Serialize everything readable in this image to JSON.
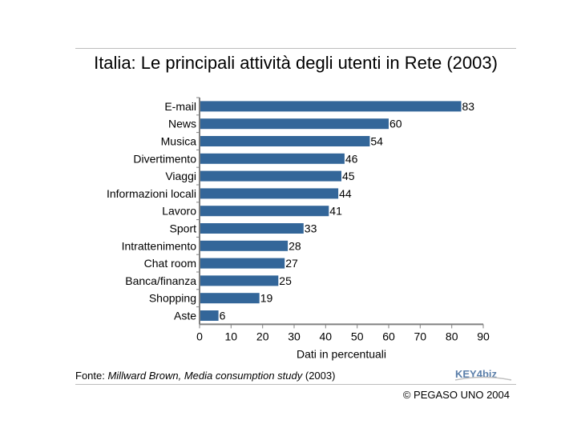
{
  "title": "Italia: Le principali attività degli utenti in Rete (2003)",
  "source": {
    "prefix": "Fonte: ",
    "author": "Millward Brown, Media consumption study",
    "year": " (2003)"
  },
  "copyright": "© PEGASO UNO 2004",
  "logo": {
    "text": "KEY4biz"
  },
  "colors": {
    "bar": "#336699",
    "axis": "#808080",
    "rule": "#bdbdbd"
  },
  "chart_data": {
    "type": "bar",
    "orientation": "horizontal",
    "categories": [
      "E-mail",
      "News",
      "Musica",
      "Divertimento",
      "Viaggi",
      "Informazioni locali",
      "Lavoro",
      "Sport",
      "Intrattenimento",
      "Chat room",
      "Banca/finanza",
      "Shopping",
      "Aste"
    ],
    "values": [
      83,
      60,
      54,
      46,
      45,
      44,
      41,
      33,
      28,
      27,
      25,
      19,
      6
    ],
    "xlabel": "Dati in percentuali",
    "xlim": [
      0,
      90
    ],
    "xticks": [
      0,
      10,
      20,
      30,
      40,
      50,
      60,
      70,
      80,
      90
    ],
    "grid": false,
    "data_labels": true
  }
}
